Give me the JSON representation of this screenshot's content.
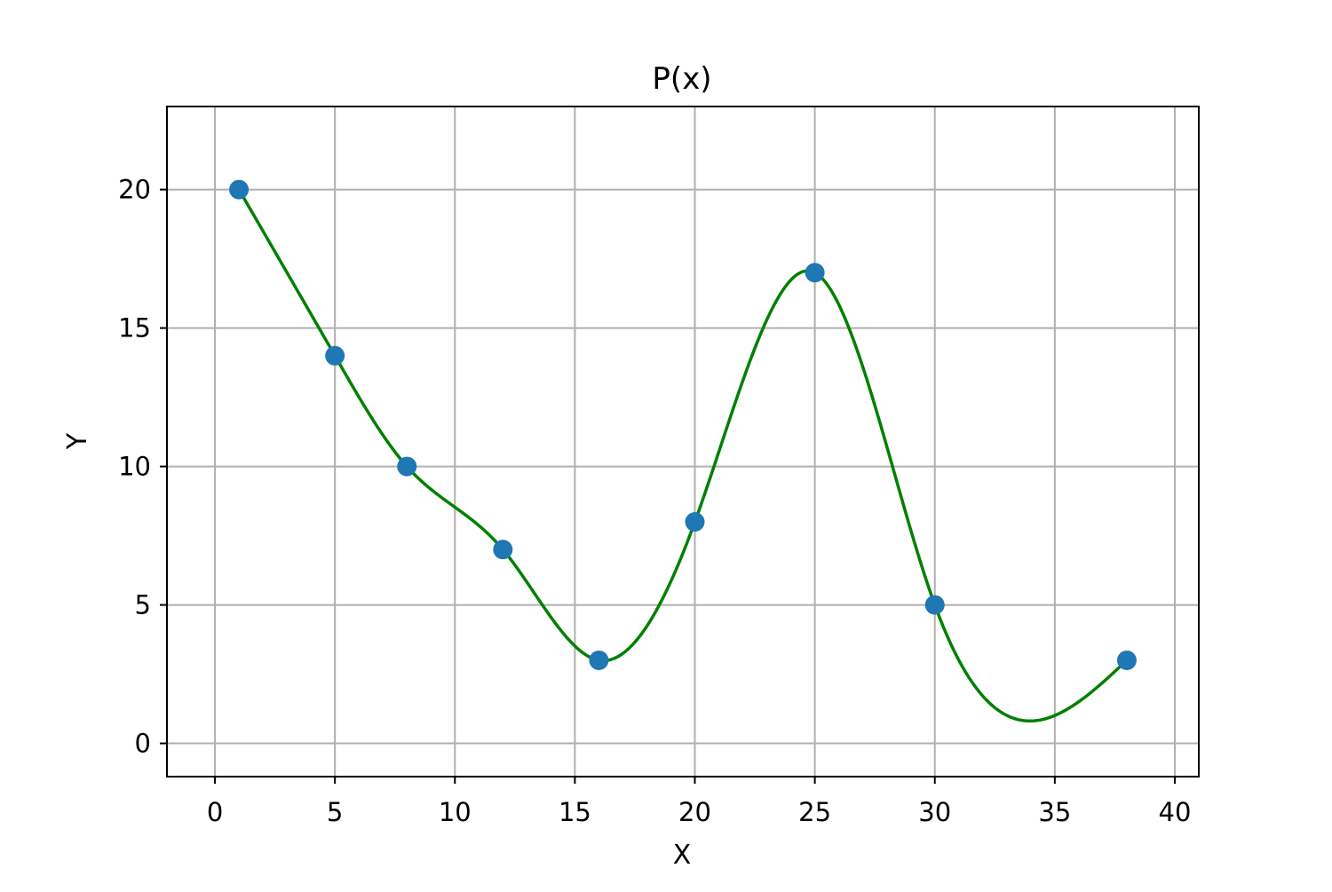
{
  "chart_data": {
    "type": "line",
    "title": "P(x)",
    "xlabel": "X",
    "ylabel": "Y",
    "xlim": [
      -2,
      41
    ],
    "ylim": [
      -1.2,
      23
    ],
    "xticks": [
      0,
      5,
      10,
      15,
      20,
      25,
      30,
      35,
      40
    ],
    "yticks": [
      0,
      5,
      10,
      15,
      20
    ],
    "grid": true,
    "series": [
      {
        "kind": "scatter",
        "color": "#1f77b4",
        "x": [
          1,
          5,
          8,
          12,
          16,
          20,
          25,
          30,
          38
        ],
        "y": [
          20,
          14,
          10,
          7,
          3,
          8,
          17,
          5,
          3
        ]
      },
      {
        "kind": "line",
        "color": "#008000",
        "interpolation": "cubic-spline",
        "x": [
          1,
          5,
          8,
          12,
          16,
          20,
          25,
          30,
          38
        ],
        "y": [
          20,
          14,
          10,
          7,
          3,
          8,
          17,
          5,
          3
        ]
      }
    ]
  }
}
